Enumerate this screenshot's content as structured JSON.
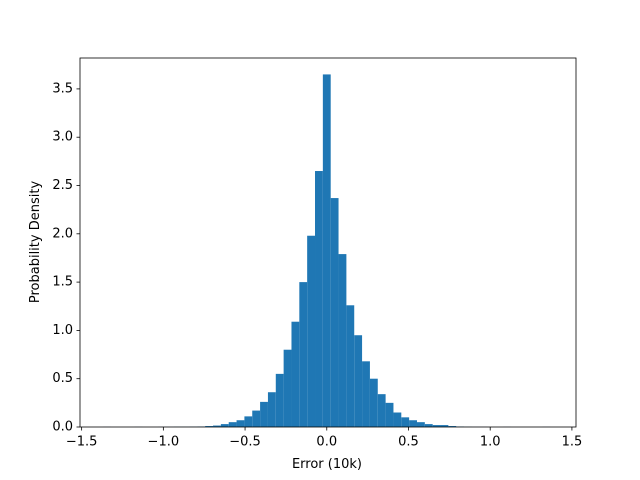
{
  "chart_data": {
    "type": "histogram",
    "xlabel": "Error (10k)",
    "ylabel": "Probability Density",
    "color": "#1f77b4",
    "bins": [
      -1.368,
      -1.32,
      -1.272,
      -1.224,
      -1.176,
      -1.128,
      -1.08,
      -1.032,
      -0.984,
      -0.936,
      -0.888,
      -0.84,
      -0.792,
      -0.744,
      -0.696,
      -0.648,
      -0.6,
      -0.552,
      -0.504,
      -0.456,
      -0.408,
      -0.36,
      -0.312,
      -0.264,
      -0.216,
      -0.168,
      -0.12,
      -0.072,
      -0.024,
      0.024,
      0.072,
      0.12,
      0.168,
      0.216,
      0.264,
      0.312,
      0.36,
      0.408,
      0.456,
      0.504,
      0.552,
      0.6,
      0.648,
      0.696,
      0.744,
      0.792,
      0.84,
      0.888,
      0.936,
      0.984,
      1.032,
      1.08,
      1.128,
      1.176,
      1.224,
      1.272,
      1.32,
      1.368
    ],
    "values": [
      0.001,
      0,
      0,
      0,
      0.001,
      0,
      0,
      0.001,
      0.001,
      0.002,
      0.002,
      0.003,
      0.005,
      0.01,
      0.015,
      0.03,
      0.05,
      0.07,
      0.11,
      0.17,
      0.26,
      0.36,
      0.55,
      0.8,
      1.09,
      1.5,
      1.98,
      2.65,
      3.65,
      2.37,
      1.79,
      1.26,
      0.95,
      0.68,
      0.5,
      0.34,
      0.25,
      0.15,
      0.1,
      0.07,
      0.05,
      0.03,
      0.02,
      0.02,
      0.01,
      0.005,
      0.002,
      0.001,
      0.001,
      0,
      0,
      0.001,
      0,
      0,
      0,
      0,
      0.001
    ],
    "xlim": [
      -1.51,
      1.525
    ],
    "ylim": [
      0,
      3.82
    ],
    "xticks": [
      {
        "value": -1.5,
        "label": "−1.5"
      },
      {
        "value": -1.0,
        "label": "−1.0"
      },
      {
        "value": -0.5,
        "label": "−0.5"
      },
      {
        "value": 0,
        "label": "0.0"
      },
      {
        "value": 0.5,
        "label": "0.5"
      },
      {
        "value": 1.0,
        "label": "1.0"
      },
      {
        "value": 1.5,
        "label": "1.5"
      }
    ],
    "yticks": [
      {
        "value": 0,
        "label": "0.0"
      },
      {
        "value": 0.5,
        "label": "0.5"
      },
      {
        "value": 1.0,
        "label": "1.0"
      },
      {
        "value": 1.5,
        "label": "1.5"
      },
      {
        "value": 2.0,
        "label": "2.0"
      },
      {
        "value": 2.5,
        "label": "2.5"
      },
      {
        "value": 3.0,
        "label": "3.0"
      },
      {
        "value": 3.5,
        "label": "3.5"
      }
    ]
  }
}
